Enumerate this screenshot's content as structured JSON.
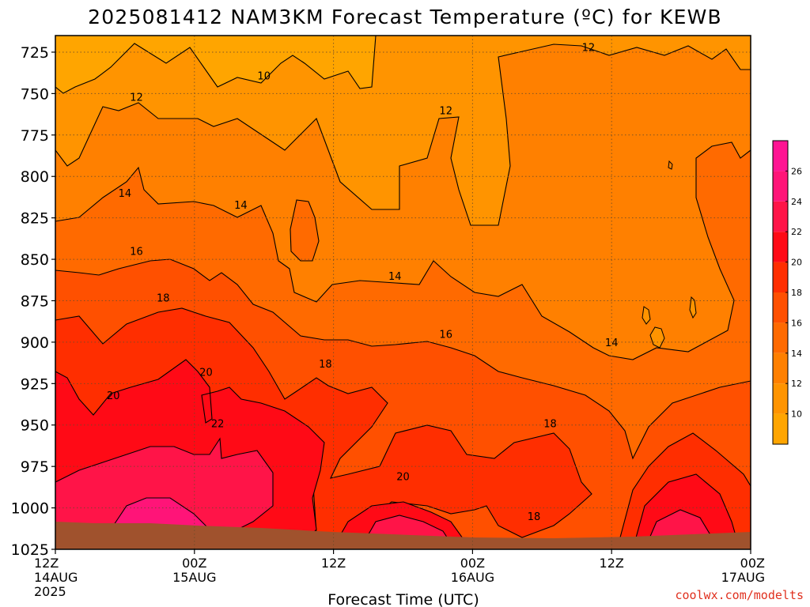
{
  "chart_data": {
    "type": "heatmap",
    "title": "2025081412 NAM3KM Forecast Temperature (ºC) for KEWB",
    "xlabel": "Forecast Time (UTC)",
    "ylabel": "",
    "watermark": "coolwx.com/modelts",
    "x_ticks": [
      {
        "hours": 0,
        "labels": [
          "12Z",
          "14AUG",
          "2025"
        ]
      },
      {
        "hours": 12,
        "labels": [
          "00Z",
          "15AUG"
        ]
      },
      {
        "hours": 24,
        "labels": [
          "12Z"
        ]
      },
      {
        "hours": 36,
        "labels": [
          "00Z",
          "16AUG"
        ]
      },
      {
        "hours": 48,
        "labels": [
          "12Z"
        ]
      },
      {
        "hours": 60,
        "labels": [
          "00Z",
          "17AUG"
        ]
      }
    ],
    "xlim": [
      0,
      60
    ],
    "y_ticks": [
      725,
      750,
      775,
      800,
      825,
      850,
      875,
      900,
      925,
      950,
      975,
      1000,
      1025
    ],
    "ylim": [
      715,
      1025
    ],
    "y_axis_inverted": true,
    "colorbar": {
      "levels": [
        8,
        10,
        12,
        14,
        16,
        18,
        20,
        22,
        24,
        26,
        28
      ],
      "tick_labels": [
        "10",
        "12",
        "14",
        "16",
        "18",
        "20",
        "22",
        "24",
        "26"
      ],
      "colors": [
        "#ffa500",
        "#ff9400",
        "#ff8000",
        "#ff6a00",
        "#ff5000",
        "#ff2e00",
        "#ff0a16",
        "#ff1448",
        "#ff1478",
        "#ff1493"
      ]
    },
    "contour_labels": [
      {
        "text": "10",
        "hours": 18,
        "pressure": 739
      },
      {
        "text": "12",
        "hours": 7,
        "pressure": 752
      },
      {
        "text": "12",
        "hours": 33.7,
        "pressure": 760
      },
      {
        "text": "12",
        "hours": 46,
        "pressure": 722
      },
      {
        "text": "14",
        "hours": 6,
        "pressure": 810
      },
      {
        "text": "14",
        "hours": 16,
        "pressure": 817
      },
      {
        "text": "14",
        "hours": 29.3,
        "pressure": 860
      },
      {
        "text": "14",
        "hours": 48,
        "pressure": 900
      },
      {
        "text": "16",
        "hours": 7,
        "pressure": 845
      },
      {
        "text": "16",
        "hours": 33.7,
        "pressure": 895
      },
      {
        "text": "18",
        "hours": 9.3,
        "pressure": 873
      },
      {
        "text": "18",
        "hours": 23.3,
        "pressure": 913
      },
      {
        "text": "18",
        "hours": 42.7,
        "pressure": 949
      },
      {
        "text": "18",
        "hours": 41.3,
        "pressure": 1005
      },
      {
        "text": "20",
        "hours": 5,
        "pressure": 932
      },
      {
        "text": "20",
        "hours": 13,
        "pressure": 918
      },
      {
        "text": "20",
        "hours": 30,
        "pressure": 981
      },
      {
        "text": "22",
        "hours": 14,
        "pressure": 949
      }
    ],
    "surface_pressure": [
      {
        "hours": 0,
        "pressure": 1009
      },
      {
        "hours": 12,
        "pressure": 1010
      },
      {
        "hours": 24,
        "pressure": 1012
      },
      {
        "hours": 36,
        "pressure": 1013
      },
      {
        "hours": 48,
        "pressure": 1013
      },
      {
        "hours": 60,
        "pressure": 1011
      }
    ],
    "grid": true
  }
}
